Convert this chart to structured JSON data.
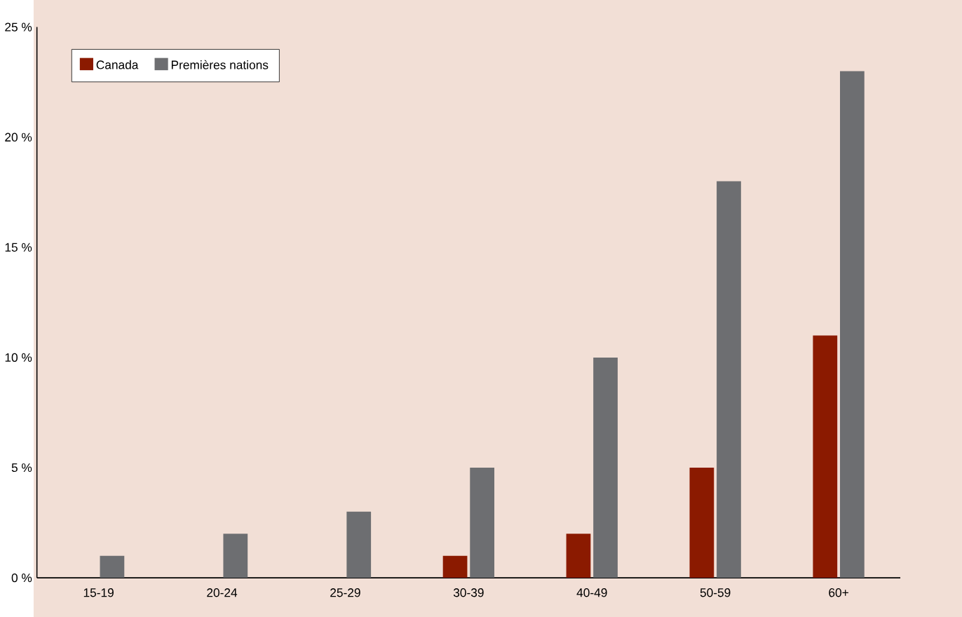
{
  "chart_data": {
    "type": "bar",
    "categories": [
      "15-19",
      "20-24",
      "25-29",
      "30-39",
      "40-49",
      "50-59",
      "60+"
    ],
    "series": [
      {
        "name": "Canada",
        "color": "#8b1a00",
        "values": [
          0,
          0,
          0,
          1,
          2,
          5,
          11
        ]
      },
      {
        "name": "Premières nations",
        "color": "#6d6e71",
        "values": [
          1,
          2,
          3,
          5,
          10,
          18,
          23
        ]
      }
    ],
    "ylim": [
      0,
      25
    ],
    "yticks": [
      {
        "value": 0,
        "label": "0 %"
      },
      {
        "value": 5,
        "label": "5 %"
      },
      {
        "value": 10,
        "label": "10 %"
      },
      {
        "value": 15,
        "label": "15 %"
      },
      {
        "value": 20,
        "label": "20 %"
      },
      {
        "value": 25,
        "label": "25 %"
      }
    ],
    "legend": "top left"
  }
}
